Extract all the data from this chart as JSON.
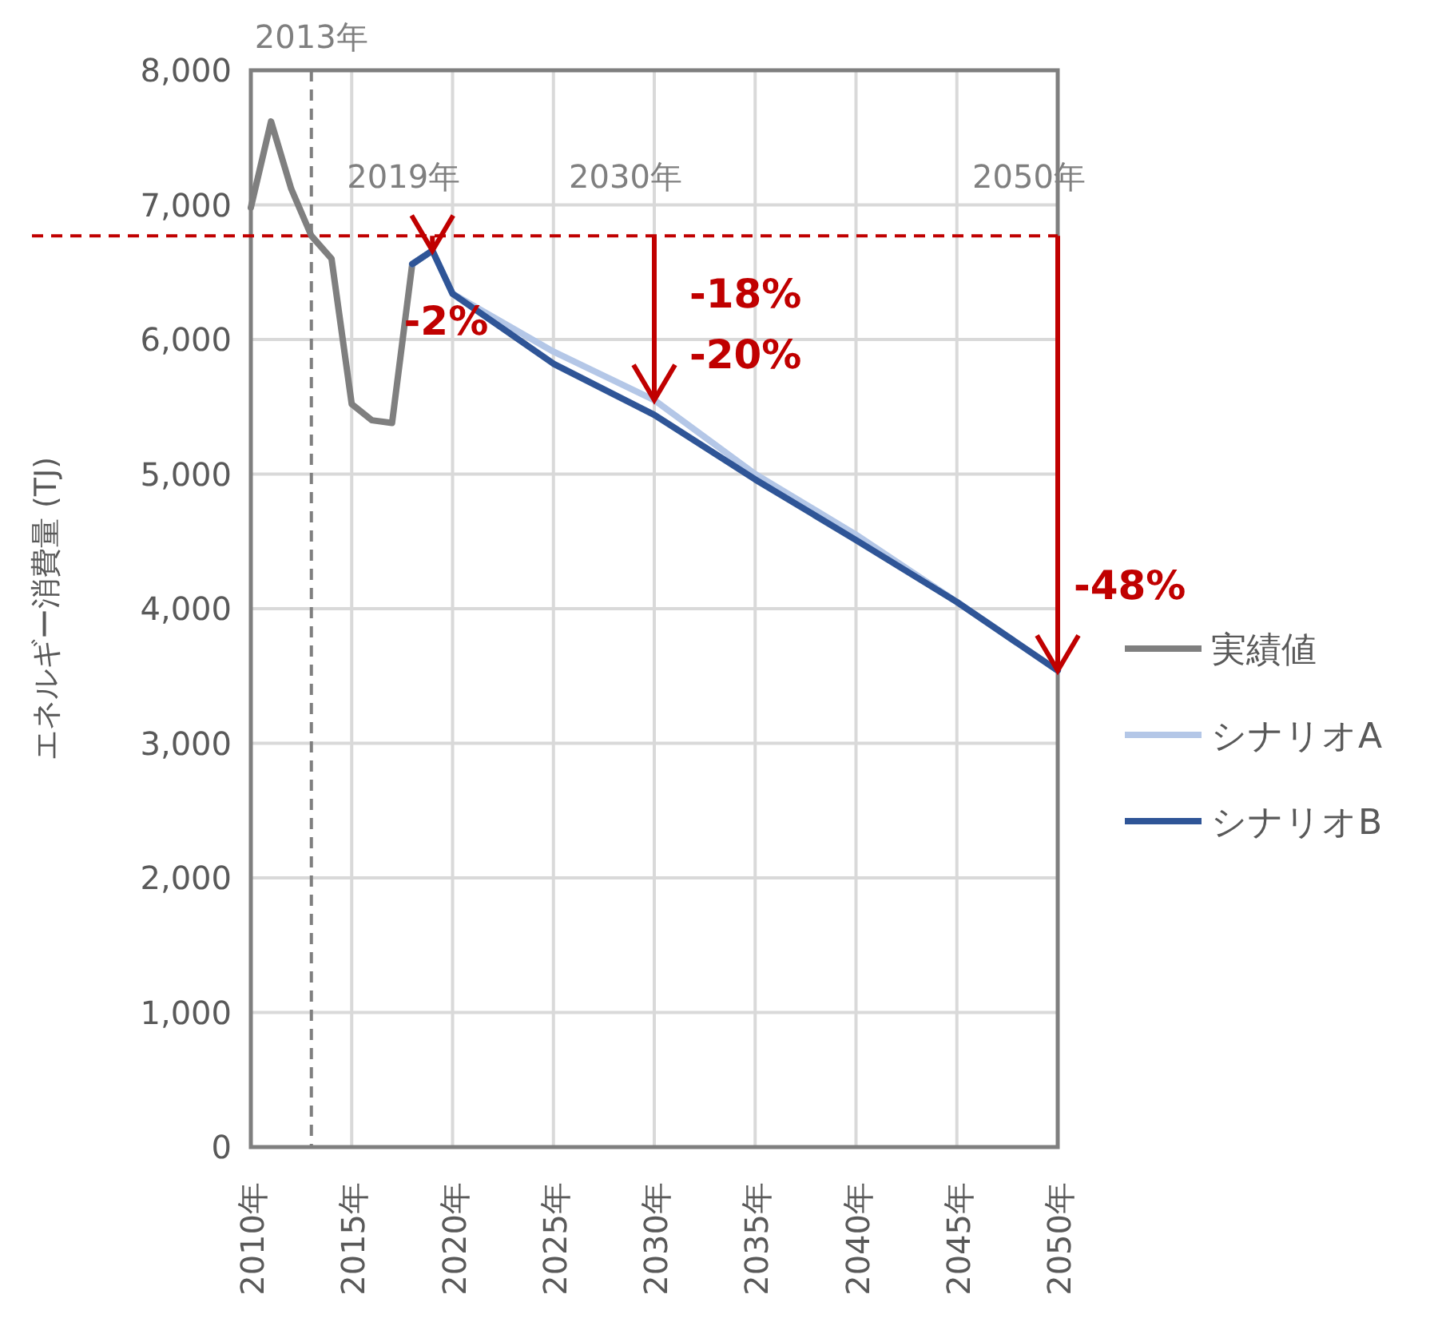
{
  "chart_data": {
    "type": "line",
    "ylabel": "エネルギー消費量 (TJ)",
    "xlim": [
      2010,
      2050
    ],
    "xticks": [
      {
        "value": 2010,
        "label": "2010年"
      },
      {
        "value": 2015,
        "label": "2015年"
      },
      {
        "value": 2020,
        "label": "2020年"
      },
      {
        "value": 2025,
        "label": "2025年"
      },
      {
        "value": 2030,
        "label": "2030年"
      },
      {
        "value": 2035,
        "label": "2035年"
      },
      {
        "value": 2040,
        "label": "2040年"
      },
      {
        "value": 2045,
        "label": "2045年"
      },
      {
        "value": 2050,
        "label": "2050年"
      }
    ],
    "ylim": [
      0,
      8000
    ],
    "yticks": [
      {
        "value": 0,
        "label": "0"
      },
      {
        "value": 1000,
        "label": "1,000"
      },
      {
        "value": 2000,
        "label": "2,000"
      },
      {
        "value": 3000,
        "label": "3,000"
      },
      {
        "value": 4000,
        "label": "4,000"
      },
      {
        "value": 5000,
        "label": "5,000"
      },
      {
        "value": 6000,
        "label": "6,000"
      },
      {
        "value": 7000,
        "label": "7,000"
      },
      {
        "value": 8000,
        "label": "8,000"
      }
    ],
    "grid": true,
    "legend": "right",
    "marker": "none",
    "line_style": "solid",
    "series": [
      {
        "name": "実績値",
        "color": "#7f7f7f",
        "x": [
          2010,
          2011,
          2012,
          2013,
          2014,
          2015,
          2016,
          2017,
          2018,
          2019
        ],
        "values": [
          6980,
          7620,
          7120,
          6770,
          6600,
          5520,
          5400,
          5380,
          6560,
          6660
        ]
      },
      {
        "name": "シナリオA",
        "color": "#b4c7e7",
        "x": [
          2018,
          2019,
          2020,
          2025,
          2030,
          2035,
          2040,
          2045,
          2050
        ],
        "values": [
          6560,
          6660,
          6340,
          5910,
          5550,
          5000,
          4550,
          4050,
          3540
        ]
      },
      {
        "name": "シナリオB",
        "color": "#2f5597",
        "x": [
          2018,
          2019,
          2020,
          2025,
          2030,
          2035,
          2040,
          2045,
          2050
        ],
        "values": [
          6560,
          6660,
          6340,
          5820,
          5440,
          4960,
          4510,
          4050,
          3540
        ]
      }
    ],
    "ref_lines": [
      {
        "axis": "x",
        "value": 2013,
        "label": "2013年",
        "color": "#7f7f7f",
        "line_style": "dashed"
      },
      {
        "axis": "y",
        "value": 6770,
        "color": "#c00000",
        "line_style": "dashed"
      }
    ],
    "annotations": [
      {
        "text": "2019年",
        "x": 2019,
        "y": 6770
      },
      {
        "text": "2030年",
        "x": 2030,
        "y": 6770
      },
      {
        "text": "2050年",
        "x": 2050,
        "y": 6770
      },
      {
        "text": "-2%",
        "x": 2019,
        "y": 6660
      },
      {
        "text": "-18%",
        "x": 2030,
        "y": 5550
      },
      {
        "text": "-20%",
        "x": 2030,
        "y": 5440
      },
      {
        "text": "-48%",
        "x": 2050,
        "y": 3540
      }
    ]
  }
}
